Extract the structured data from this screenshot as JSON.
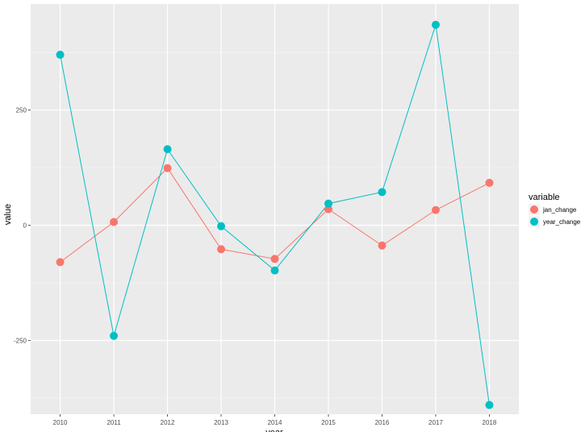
{
  "chart_data": {
    "type": "line",
    "title": "",
    "xlabel": "year",
    "ylabel": "value",
    "x": [
      2010,
      2011,
      2012,
      2013,
      2014,
      2015,
      2016,
      2017,
      2018
    ],
    "x_ticks": [
      "2010",
      "2011",
      "2012",
      "2013",
      "2014",
      "2015",
      "2016",
      "2017",
      "2018"
    ],
    "y_ticks": [
      -250,
      0,
      250
    ],
    "y_tick_labels": [
      "-250",
      "0",
      "250"
    ],
    "xlim": [
      2009.45,
      2018.55
    ],
    "ylim": [
      -410,
      480
    ],
    "grid": true,
    "legend": {
      "title": "variable",
      "position": "right"
    },
    "series": [
      {
        "name": "jan_change",
        "color": "#F8766D",
        "values": [
          -80,
          7,
          124,
          -52,
          -73,
          35,
          -44,
          33,
          92
        ]
      },
      {
        "name": "year_change",
        "color": "#00BFC4",
        "values": [
          370,
          -240,
          165,
          -2,
          -98,
          47,
          72,
          435,
          -390
        ]
      }
    ]
  }
}
